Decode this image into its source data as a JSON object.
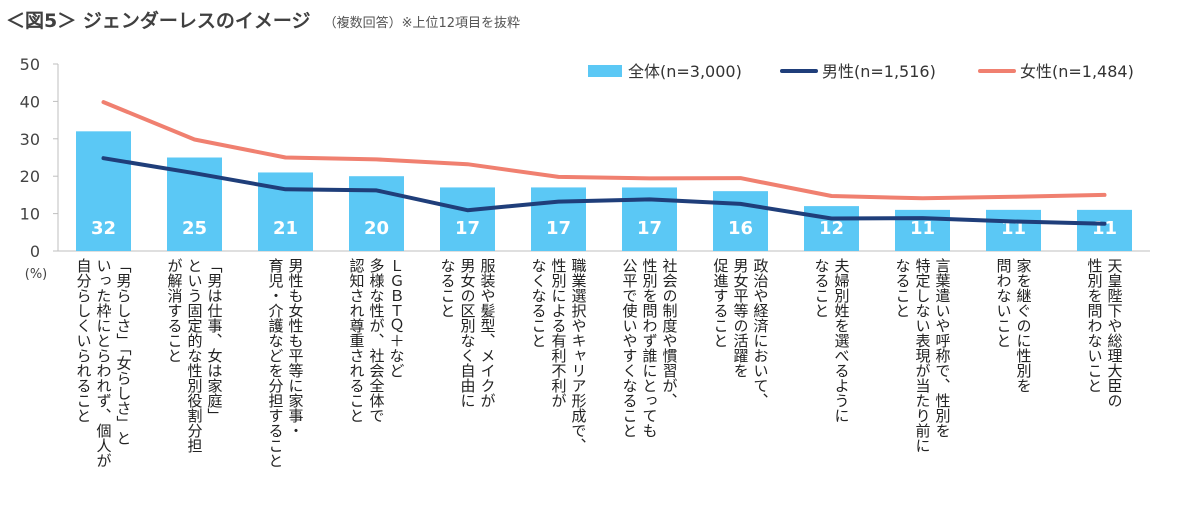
{
  "title": {
    "main": "＜図5＞ ジェンダーレスのイメージ",
    "sub": "（複数回答）※上位12項目を抜粋"
  },
  "chart_data": {
    "type": "bar",
    "ylim": [
      0,
      50
    ],
    "yticks": [
      0,
      10,
      20,
      30,
      40,
      50
    ],
    "ylabel": "(%)",
    "legend_position": "top-right",
    "categories": [
      "「男らしさ」「女らしさ」といった枠にとらわれず、個人が自分らしくいられること",
      "「男は仕事、女は家庭」という固定的な性別役割分担が解消すること",
      "男性も女性も平等に家事・育児・介護などを分担すること",
      "ＬＧＢＴＱ＋など多様な性が、社会全体で認知され尊重されること",
      "服装や髪型、メイクが男女の区別なく自由になること",
      "職業選択やキャリア形成で、性別による有利不利がなくなること",
      "社会の制度や慣習が、性別を問わず誰にとっても公平で使いやすくなること",
      "政治や経済において、男女平等の活躍を促進すること",
      "夫婦別姓を選べるようになること",
      "言葉遣いや呼称で、性別を特定しない表現が当たり前になること",
      "家を継ぐのに性別を問わないこと",
      "天皇陛下や総理大臣の性別を問わないこと"
    ],
    "category_lines": [
      [
        "「男らしさ」「女らしさ」と",
        "いった枠にとらわれず、個人が",
        "自分らしくいられること"
      ],
      [
        "「男は仕事、女は家庭」",
        "という固定的な性別役割分担",
        "が解消すること"
      ],
      [
        "男性も女性も平等に家事・",
        "育児・介護などを分担すること"
      ],
      [
        "ＬＧＢＴＱ＋など",
        "多様な性が、社会全体で",
        "認知され尊重されること"
      ],
      [
        "服装や髪型、メイクが",
        "男女の区別なく自由に",
        "なること"
      ],
      [
        "職業選択やキャリア形成で、",
        "性別による有利不利が",
        "なくなること"
      ],
      [
        "社会の制度や慣習が、",
        "性別を問わず誰にとっても",
        "公平で使いやすくなること"
      ],
      [
        "政治や経済において、",
        "男女平等の活躍を",
        "促進すること"
      ],
      [
        "夫婦別姓を選べるように",
        "なること"
      ],
      [
        "言葉遣いや呼称で、性別を",
        "特定しない表現が当たり前に",
        "なること"
      ],
      [
        "家を継ぐのに性別を",
        "問わないこと"
      ],
      [
        "天皇陛下や総理大臣の",
        "性別を問わないこと"
      ]
    ],
    "series": [
      {
        "name": "全体(n=3,000)",
        "kind": "bar",
        "color": "#5bc8f5",
        "values": [
          32,
          25,
          21,
          20,
          17,
          17,
          17,
          16,
          12,
          11,
          11,
          11
        ],
        "data_labels": [
          "32",
          "25",
          "21",
          "20",
          "17",
          "17",
          "17",
          "16",
          "12",
          "11",
          "11",
          "11"
        ]
      },
      {
        "name": "男性(n=1,516)",
        "kind": "line",
        "color": "#1f3e7a",
        "values": [
          24.8,
          20.8,
          16.5,
          16.2,
          10.9,
          13.2,
          13.8,
          12.6,
          8.7,
          8.8,
          7.9,
          7.3
        ]
      },
      {
        "name": "女性(n=1,484)",
        "kind": "line",
        "color": "#f08070",
        "values": [
          39.8,
          29.8,
          25.0,
          24.5,
          23.2,
          19.8,
          19.4,
          19.5,
          14.7,
          14.1,
          14.5,
          15.0
        ]
      }
    ]
  }
}
